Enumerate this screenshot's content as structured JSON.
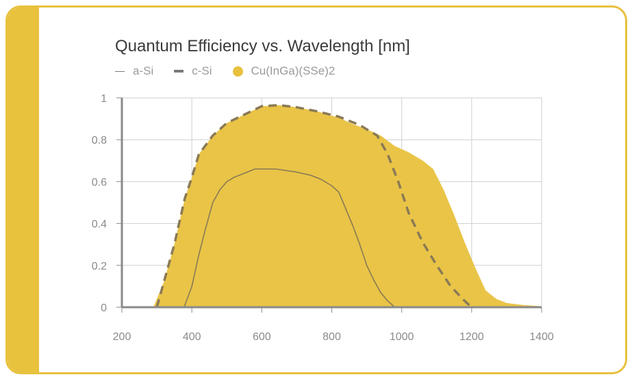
{
  "chart_data": {
    "type": "area",
    "title": "Quantum Efficiency vs. Wavelength [nm]",
    "xlabel": "",
    "ylabel": "",
    "xlim": [
      200,
      1400
    ],
    "ylim": [
      0,
      1
    ],
    "x_ticks": [
      "200",
      "400",
      "600",
      "800",
      "1000",
      "1200",
      "1400"
    ],
    "y_ticks": [
      "0",
      "0.2",
      "0.4",
      "0.6",
      "0.8",
      "1"
    ],
    "grid": true,
    "legend_position": "top-left",
    "series": [
      {
        "name": "a-Si",
        "style": "thin-line",
        "color": "#8a7a55",
        "points": [
          [
            378,
            0
          ],
          [
            400,
            0.1
          ],
          [
            420,
            0.25
          ],
          [
            440,
            0.38
          ],
          [
            460,
            0.5
          ],
          [
            480,
            0.56
          ],
          [
            500,
            0.6
          ],
          [
            520,
            0.62
          ],
          [
            550,
            0.64
          ],
          [
            580,
            0.66
          ],
          [
            600,
            0.66
          ],
          [
            640,
            0.66
          ],
          [
            700,
            0.645
          ],
          [
            740,
            0.63
          ],
          [
            770,
            0.61
          ],
          [
            800,
            0.58
          ],
          [
            820,
            0.55
          ],
          [
            840,
            0.47
          ],
          [
            860,
            0.39
          ],
          [
            880,
            0.3
          ],
          [
            900,
            0.2
          ],
          [
            920,
            0.13
          ],
          [
            940,
            0.07
          ],
          [
            960,
            0.03
          ],
          [
            980,
            0.0
          ]
        ]
      },
      {
        "name": "c-Si",
        "style": "dashed-line",
        "color": "#8a7a55",
        "points": [
          [
            300,
            0
          ],
          [
            320,
            0.12
          ],
          [
            350,
            0.3
          ],
          [
            380,
            0.52
          ],
          [
            400,
            0.62
          ],
          [
            420,
            0.73
          ],
          [
            460,
            0.82
          ],
          [
            500,
            0.88
          ],
          [
            550,
            0.92
          ],
          [
            600,
            0.96
          ],
          [
            650,
            0.965
          ],
          [
            700,
            0.955
          ],
          [
            760,
            0.935
          ],
          [
            820,
            0.91
          ],
          [
            880,
            0.87
          ],
          [
            930,
            0.82
          ],
          [
            960,
            0.73
          ],
          [
            990,
            0.6
          ],
          [
            1020,
            0.45
          ],
          [
            1060,
            0.31
          ],
          [
            1100,
            0.2
          ],
          [
            1140,
            0.1
          ],
          [
            1180,
            0.03
          ],
          [
            1200,
            0.0
          ]
        ]
      },
      {
        "name": "Cu(InGa)(SSe)2",
        "style": "filled-area",
        "color": "#e8c13d",
        "points": [
          [
            290,
            0
          ],
          [
            320,
            0.12
          ],
          [
            350,
            0.3
          ],
          [
            380,
            0.52
          ],
          [
            400,
            0.62
          ],
          [
            420,
            0.73
          ],
          [
            460,
            0.82
          ],
          [
            500,
            0.88
          ],
          [
            550,
            0.92
          ],
          [
            600,
            0.96
          ],
          [
            650,
            0.965
          ],
          [
            700,
            0.955
          ],
          [
            760,
            0.935
          ],
          [
            820,
            0.905
          ],
          [
            860,
            0.875
          ],
          [
            900,
            0.85
          ],
          [
            940,
            0.82
          ],
          [
            980,
            0.77
          ],
          [
            1020,
            0.74
          ],
          [
            1060,
            0.7
          ],
          [
            1090,
            0.66
          ],
          [
            1120,
            0.56
          ],
          [
            1150,
            0.44
          ],
          [
            1180,
            0.31
          ],
          [
            1210,
            0.19
          ],
          [
            1240,
            0.08
          ],
          [
            1270,
            0.04
          ],
          [
            1300,
            0.02
          ],
          [
            1350,
            0.01
          ],
          [
            1400,
            0.005
          ]
        ]
      }
    ]
  }
}
